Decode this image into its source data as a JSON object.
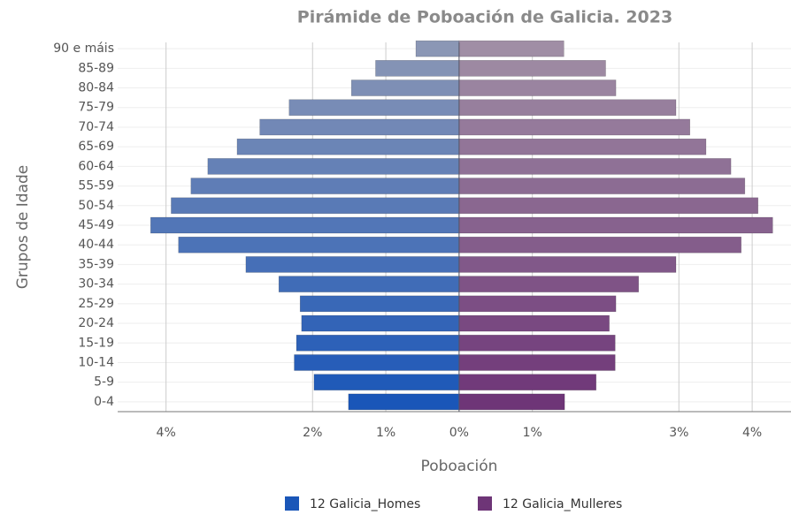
{
  "chart_data": {
    "type": "pyramid",
    "title": "Pirámide de Poboación de Galicia. 2023",
    "xlabel": "Poboación",
    "ylabel": "Grupos de Idade",
    "categories": [
      "0-4",
      "5-9",
      "10-14",
      "15-19",
      "20-24",
      "25-29",
      "30-34",
      "35-39",
      "40-44",
      "45-49",
      "50-54",
      "55-59",
      "60-64",
      "65-69",
      "70-74",
      "75-79",
      "80-84",
      "85-89",
      "90 e máis"
    ],
    "series": [
      {
        "name": "12 Galicia_Homes",
        "color": "#1a56b8",
        "values": [
          -1.51,
          -1.98,
          -2.25,
          -2.22,
          -2.15,
          -2.17,
          -2.46,
          -2.91,
          -3.83,
          -4.21,
          -3.93,
          -3.66,
          -3.43,
          -3.03,
          -2.72,
          -2.32,
          -1.47,
          -1.14,
          -0.59
        ]
      },
      {
        "name": "12 Galicia_Mulleres",
        "color": "#6e3577",
        "values": [
          1.44,
          1.87,
          2.13,
          2.13,
          2.05,
          2.14,
          2.45,
          2.96,
          3.85,
          4.28,
          4.08,
          3.9,
          3.71,
          3.37,
          3.15,
          2.96,
          2.14,
          2.0,
          1.43
        ]
      }
    ],
    "xlim": [
      -4.66,
      4.53
    ],
    "xticks": [
      {
        "value": -4,
        "label": "4%"
      },
      {
        "value": -2,
        "label": "2%"
      },
      {
        "value": -1,
        "label": "1%"
      },
      {
        "value": 0,
        "label": "0%"
      },
      {
        "value": 1,
        "label": "1%"
      },
      {
        "value": 3,
        "label": "3%"
      },
      {
        "value": 4,
        "label": "4%"
      }
    ],
    "grid": true,
    "legend": "bottom"
  }
}
